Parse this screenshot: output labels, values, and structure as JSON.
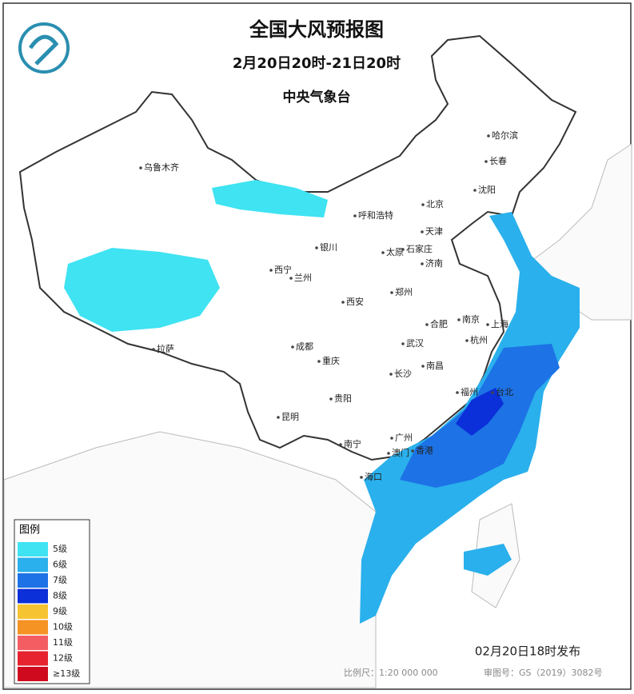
{
  "header": {
    "title": "全国大风预报图",
    "subtitle": "2月20日20时-21日20时",
    "issuer": "中央气象台"
  },
  "cities": [
    "乌鲁木齐",
    "哈尔滨",
    "长春",
    "沈阳",
    "北京",
    "天津",
    "呼和浩特",
    "银川",
    "太原",
    "石家庄",
    "济南",
    "西宁",
    "兰州",
    "郑州",
    "西安",
    "合肥",
    "南京",
    "上海",
    "杭州",
    "拉萨",
    "成都",
    "武汉",
    "重庆",
    "长沙",
    "南昌",
    "福州",
    "台北",
    "贵阳",
    "昆明",
    "广州",
    "香港",
    "澳门",
    "南宁",
    "海口"
  ],
  "legend": {
    "title": "图例",
    "items": [
      {
        "label": "5级",
        "color": "#3fe3f2"
      },
      {
        "label": "6级",
        "color": "#2ab0ec"
      },
      {
        "label": "7级",
        "color": "#1d72e6"
      },
      {
        "label": "8级",
        "color": "#0b2fd8"
      },
      {
        "label": "9级",
        "color": "#f6c332"
      },
      {
        "label": "10级",
        "color": "#f59325"
      },
      {
        "label": "11级",
        "color": "#f45e62"
      },
      {
        "label": "12级",
        "color": "#e6232f"
      },
      {
        "label": "≥13级",
        "color": "#cf0a1e"
      }
    ]
  },
  "footer": {
    "issued": "02月20日18时发布",
    "scale": "比例尺：1:20 000 000",
    "approval": "审图号：GS（2019）3082号"
  }
}
